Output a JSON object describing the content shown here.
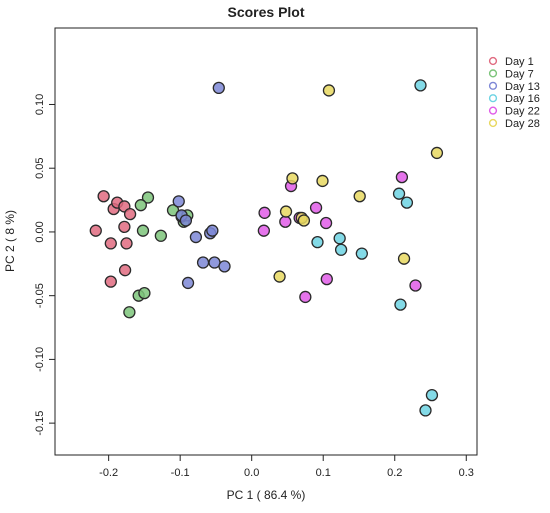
{
  "chart_data": {
    "type": "scatter",
    "title": "Scores Plot",
    "xlabel": "PC 1 ( 86.4 %)",
    "ylabel": "PC 2 ( 8 %)",
    "xlim": [
      -0.275,
      0.315
    ],
    "ylim": [
      -0.175,
      0.16
    ],
    "x_ticks": [
      -0.2,
      -0.1,
      0.0,
      0.1,
      0.2,
      0.3
    ],
    "x_tick_labels": [
      "-0.2",
      "-0.1",
      "0.0",
      "0.1",
      "0.2",
      "0.3"
    ],
    "y_ticks": [
      -0.15,
      -0.1,
      -0.05,
      0.0,
      0.05,
      0.1
    ],
    "y_tick_labels": [
      "-0.15",
      "-0.10",
      "-0.05",
      "0.00",
      "0.05",
      "0.10"
    ],
    "grid": false,
    "legend_position": "top-right",
    "marker": "circle",
    "series": [
      {
        "name": "Day 1",
        "color": "#e06b80",
        "x": [
          -0.207,
          -0.193,
          -0.188,
          -0.178,
          -0.17,
          -0.218,
          -0.197,
          -0.178,
          -0.175,
          -0.197,
          -0.177
        ],
        "y": [
          0.028,
          0.018,
          0.023,
          0.02,
          0.014,
          0.001,
          -0.009,
          0.004,
          -0.009,
          -0.039,
          -0.03
        ]
      },
      {
        "name": "Day 7",
        "color": "#7cc47a",
        "x": [
          -0.145,
          -0.155,
          -0.152,
          -0.127,
          -0.11,
          -0.095,
          -0.098,
          -0.09,
          -0.158,
          -0.15,
          -0.171
        ],
        "y": [
          0.027,
          0.021,
          0.001,
          -0.003,
          0.017,
          0.008,
          0.012,
          0.013,
          -0.05,
          -0.048,
          -0.063
        ]
      },
      {
        "name": "Day 13",
        "color": "#7d87d6",
        "x": [
          -0.046,
          -0.102,
          -0.098,
          -0.092,
          -0.078,
          -0.058,
          -0.055,
          -0.068,
          -0.052,
          -0.038,
          -0.089
        ],
        "y": [
          0.113,
          0.024,
          0.013,
          0.009,
          -0.004,
          -0.001,
          0.001,
          -0.024,
          -0.024,
          -0.027,
          -0.04
        ]
      },
      {
        "name": "Day 16",
        "color": "#6dd3e3",
        "x": [
          0.236,
          0.206,
          0.217,
          0.123,
          0.125,
          0.092,
          0.154,
          0.208,
          0.252,
          0.243
        ],
        "y": [
          0.115,
          0.03,
          0.023,
          -0.005,
          -0.014,
          -0.008,
          -0.017,
          -0.057,
          -0.128,
          -0.14
        ]
      },
      {
        "name": "Day 22",
        "color": "#e05ce8",
        "x": [
          0.055,
          0.21,
          0.018,
          0.017,
          0.047,
          0.067,
          0.09,
          0.104,
          0.229,
          0.105,
          0.075
        ],
        "y": [
          0.036,
          0.043,
          0.015,
          0.001,
          0.008,
          0.011,
          0.019,
          0.007,
          -0.042,
          -0.037,
          -0.051
        ]
      },
      {
        "name": "Day 28",
        "color": "#e8d860",
        "x": [
          0.108,
          0.259,
          0.057,
          0.099,
          0.151,
          0.048,
          0.07,
          0.073,
          0.039,
          0.213
        ],
        "y": [
          0.111,
          0.062,
          0.042,
          0.04,
          0.028,
          0.016,
          0.011,
          0.009,
          -0.035,
          -0.021
        ]
      }
    ]
  }
}
